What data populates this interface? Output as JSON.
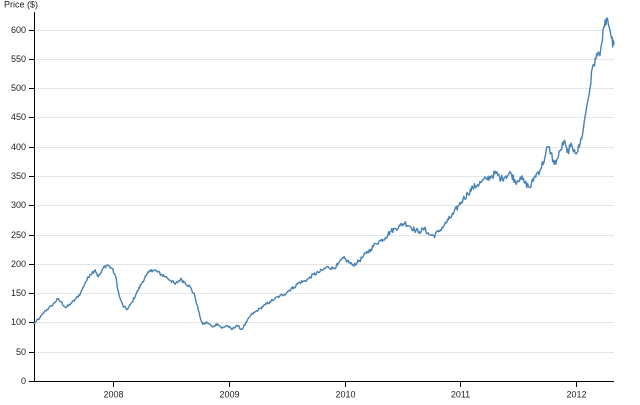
{
  "chart_data": {
    "type": "line",
    "title": "",
    "xlabel": "",
    "ylabel": "Price ($)",
    "ylim": [
      0,
      630
    ],
    "xlim": [
      "2007-04-26",
      "2012-05-01"
    ],
    "y_ticks": [
      0,
      50,
      100,
      150,
      200,
      250,
      300,
      350,
      400,
      450,
      500,
      550,
      600
    ],
    "y_tick_labels": [
      "0",
      "50",
      "100",
      "150",
      "200",
      "250",
      "300",
      "350",
      "400",
      "450",
      "500",
      "550",
      "600"
    ],
    "x_ticks": [
      "2008-01-01",
      "2009-01-01",
      "2010-01-01",
      "2011-01-01",
      "2012-01-01"
    ],
    "x_tick_labels": [
      "2008",
      "2009",
      "2010",
      "2011",
      "2012"
    ],
    "grid": "horizontal",
    "colors": {
      "line": "#4682b4"
    },
    "series": [
      {
        "name": "",
        "x": [
          "2007-04-26",
          "2007-05-15",
          "2007-06-01",
          "2007-06-20",
          "2007-07-10",
          "2007-07-20",
          "2007-08-05",
          "2007-08-20",
          "2007-09-05",
          "2007-09-20",
          "2007-10-05",
          "2007-10-20",
          "2007-11-05",
          "2007-11-15",
          "2007-11-25",
          "2007-12-05",
          "2007-12-15",
          "2007-12-28",
          "2008-01-08",
          "2008-01-20",
          "2008-02-01",
          "2008-02-15",
          "2008-03-01",
          "2008-03-15",
          "2008-04-01",
          "2008-04-15",
          "2008-05-01",
          "2008-05-15",
          "2008-06-01",
          "2008-06-15",
          "2008-07-01",
          "2008-07-15",
          "2008-08-01",
          "2008-08-15",
          "2008-09-01",
          "2008-09-15",
          "2008-10-01",
          "2008-10-10",
          "2008-10-25",
          "2008-11-10",
          "2008-11-25",
          "2008-12-10",
          "2008-12-25",
          "2009-01-10",
          "2009-01-25",
          "2009-02-10",
          "2009-02-25",
          "2009-03-10",
          "2009-03-25",
          "2009-04-10",
          "2009-04-25",
          "2009-05-10",
          "2009-05-25",
          "2009-06-10",
          "2009-06-25",
          "2009-07-10",
          "2009-07-25",
          "2009-08-10",
          "2009-08-25",
          "2009-09-10",
          "2009-09-25",
          "2009-10-10",
          "2009-10-25",
          "2009-11-10",
          "2009-11-25",
          "2009-12-10",
          "2009-12-28",
          "2010-01-10",
          "2010-01-25",
          "2010-02-10",
          "2010-02-25",
          "2010-03-10",
          "2010-03-25",
          "2010-04-10",
          "2010-04-25",
          "2010-05-10",
          "2010-05-25",
          "2010-06-10",
          "2010-06-25",
          "2010-07-10",
          "2010-07-25",
          "2010-08-10",
          "2010-08-25",
          "2010-09-10",
          "2010-09-25",
          "2010-10-10",
          "2010-10-25",
          "2010-11-10",
          "2010-11-25",
          "2010-12-10",
          "2010-12-28",
          "2011-01-10",
          "2011-01-25",
          "2011-02-10",
          "2011-02-25",
          "2011-03-10",
          "2011-03-25",
          "2011-04-10",
          "2011-04-25",
          "2011-05-10",
          "2011-05-25",
          "2011-06-10",
          "2011-06-25",
          "2011-07-10",
          "2011-07-25",
          "2011-08-10",
          "2011-08-25",
          "2011-09-10",
          "2011-09-25",
          "2011-10-05",
          "2011-10-15",
          "2011-10-25",
          "2011-11-05",
          "2011-11-15",
          "2011-11-25",
          "2011-12-05",
          "2011-12-15",
          "2011-12-28",
          "2012-01-05",
          "2012-01-15",
          "2012-01-25",
          "2012-02-05",
          "2012-02-15",
          "2012-02-25",
          "2012-03-05",
          "2012-03-15",
          "2012-03-25",
          "2012-04-01",
          "2012-04-08",
          "2012-04-13",
          "2012-04-18",
          "2012-04-23",
          "2012-04-27",
          "2012-05-01"
        ],
        "values": [
          98,
          108,
          120,
          128,
          140,
          135,
          125,
          132,
          140,
          150,
          168,
          182,
          190,
          178,
          186,
          196,
          198,
          192,
          180,
          145,
          128,
          122,
          135,
          150,
          168,
          180,
          190,
          188,
          182,
          178,
          172,
          165,
          174,
          168,
          160,
          145,
          110,
          97,
          100,
          92,
          98,
          90,
          95,
          88,
          95,
          88,
          100,
          112,
          118,
          124,
          130,
          135,
          140,
          145,
          148,
          155,
          160,
          168,
          170,
          175,
          182,
          185,
          190,
          195,
          192,
          198,
          210,
          205,
          198,
          202,
          210,
          218,
          225,
          235,
          240,
          245,
          255,
          260,
          265,
          270,
          265,
          258,
          255,
          260,
          250,
          248,
          255,
          265,
          275,
          285,
          300,
          310,
          320,
          330,
          335,
          340,
          345,
          350,
          355,
          345,
          350,
          355,
          340,
          348,
          338,
          330,
          350,
          360,
          380,
          400,
          390,
          370,
          380,
          395,
          410,
          390,
          400,
          395,
          390,
          405,
          430,
          470,
          500,
          540,
          550,
          560,
          580,
          605,
          620,
          610,
          600,
          585,
          570,
          575
        ]
      }
    ]
  }
}
